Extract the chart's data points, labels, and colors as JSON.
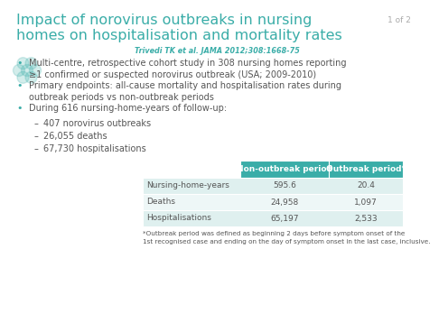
{
  "title_line1": "Impact of norovirus outbreaks in nursing",
  "title_line2": "homes on hospitalisation and mortality rates",
  "citation": "Trivedi TK et al. JAMA 2012;308:1668-75",
  "slide_number": "1 of 2",
  "bullet_points": [
    "Multi-centre, retrospective cohort study in 308 nursing homes reporting\n≥1 confirmed or suspected norovirus outbreak (USA; 2009-2010)",
    "Primary endpoints: all-cause mortality and hospitalisation rates during\noutbreak periods vs non-outbreak periods",
    "During 616 nursing-home-years of follow-up:"
  ],
  "sub_bullets": [
    "407 norovirus outbreaks",
    "26,055 deaths",
    "67,730 hospitalisations"
  ],
  "table_headers": [
    "",
    "Non-outbreak period",
    "Outbreak period*"
  ],
  "table_rows": [
    [
      "Nursing-home-years",
      "595.6",
      "20.4"
    ],
    [
      "Deaths",
      "24,958",
      "1,097"
    ],
    [
      "Hospitalisations",
      "65,197",
      "2,533"
    ]
  ],
  "footnote_line1": "*Outbreak period was defined as beginning 2 days before symptom onset of the",
  "footnote_line2": "1st recognised case and ending on the day of symptom onset in the last case, inclusive.",
  "teal_color": "#3AADA8",
  "title_color": "#3AADA8",
  "citation_color": "#3AADA8",
  "text_color": "#555555",
  "table_header_bg": "#3AADA8",
  "table_row_bg_odd": "#DFF0EF",
  "table_row_bg_even": "#EEF7F7",
  "background_color": "#FFFFFF",
  "slide_num_color": "#AAAAAA"
}
